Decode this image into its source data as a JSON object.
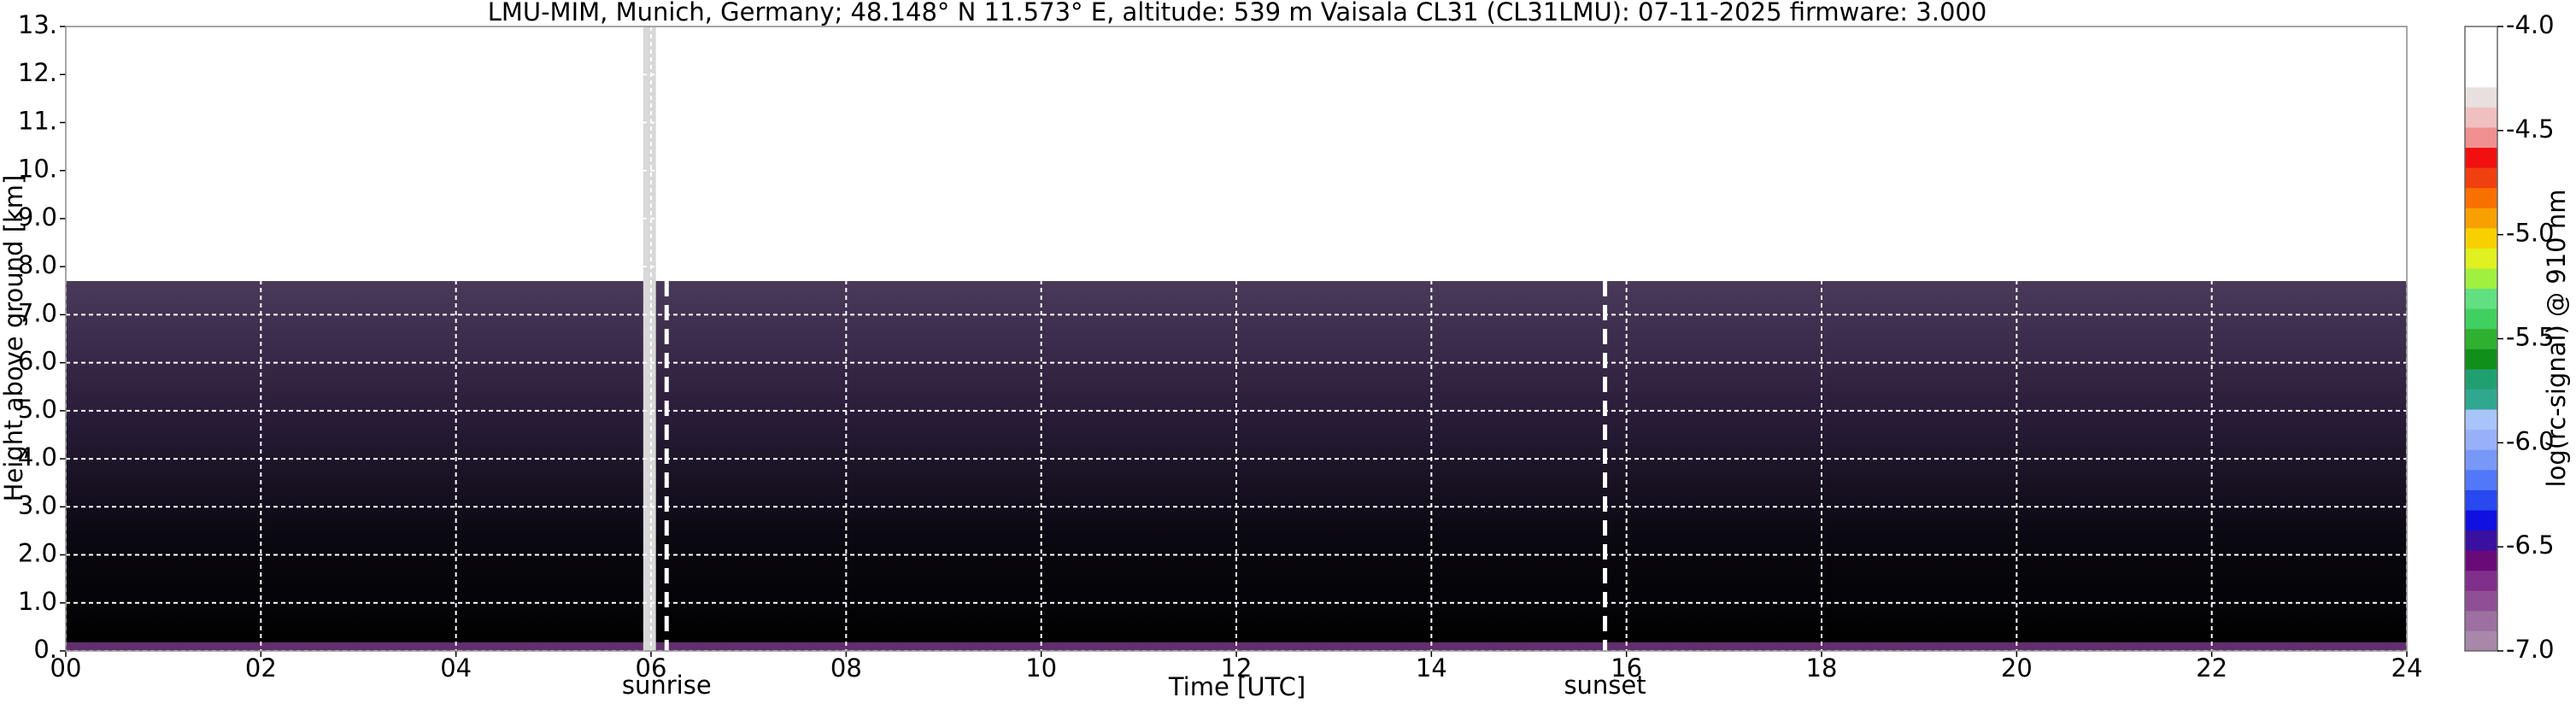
{
  "chart_data": {
    "type": "heatmap",
    "title": "LMU-MIM, Munich, Germany; 48.148° N 11.573° E, altitude: 539 m    Vaisala CL31 (CL31LMU): 07-11-2025    firmware: 3.000",
    "xlabel": "Time [UTC]",
    "ylabel": "Height above ground [km]",
    "xlim": [
      0,
      24
    ],
    "xticks": [
      {
        "value": 0,
        "label": "00"
      },
      {
        "value": 2,
        "label": "02"
      },
      {
        "value": 4,
        "label": "04"
      },
      {
        "value": 6,
        "label": "06"
      },
      {
        "value": 8,
        "label": "08"
      },
      10,
      12,
      14,
      16,
      18,
      20,
      22,
      24
    ],
    "ylim": [
      0,
      13
    ],
    "yticks": [
      {
        "value": 0,
        "label": "0."
      },
      {
        "value": 1,
        "label": "1.0"
      },
      {
        "value": 2,
        "label": "2.0"
      },
      {
        "value": 3,
        "label": "3.0"
      },
      {
        "value": 4,
        "label": "4.0"
      },
      {
        "value": 5,
        "label": "5.0"
      },
      {
        "value": 6,
        "label": "6.0"
      },
      {
        "value": 7,
        "label": "7.0"
      },
      {
        "value": 8,
        "label": "8.0"
      },
      {
        "value": 9,
        "label": "9.0"
      },
      {
        "value": 10,
        "label": "10."
      },
      {
        "value": 11,
        "label": "11."
      },
      {
        "value": 12,
        "label": "12."
      },
      {
        "value": 13,
        "label": "13."
      }
    ],
    "grid": true,
    "signal_top": 7.7,
    "data_gap": [
      5.92,
      6.05
    ],
    "annotations": [
      {
        "label": "sunrise",
        "x": 6.16
      },
      {
        "label": "sunset",
        "x": 15.78
      }
    ],
    "colorbar": {
      "label": "log(rc-signal) @ 910 nm",
      "lim": [
        -7,
        -4
      ],
      "ticks": [
        {
          "value": -7,
          "label": "-7.0"
        },
        -6.5,
        {
          "value": -6,
          "label": "-6.0"
        },
        -5.5,
        {
          "value": -5,
          "label": "-5.0"
        },
        -4.5,
        {
          "value": -4,
          "label": "-4.0"
        }
      ],
      "colors": [
        "#a888a8",
        "#9c70a0",
        "#904f94",
        "#80308a",
        "#6a0a78",
        "#3a10a0",
        "#1010e0",
        "#2848f0",
        "#5078f8",
        "#7898f8",
        "#98b0f8",
        "#a8c4f8",
        "#30a890",
        "#20a070",
        "#10901a",
        "#30b030",
        "#40d060",
        "#60e080",
        "#a0f040",
        "#e0f020",
        "#f8d000",
        "#f8a000",
        "#f87000",
        "#f04010",
        "#f01010",
        "#f09090",
        "#f0c0c0",
        "#e8e0e0",
        "#ffffff",
        "#ffffff",
        "#ffffff"
      ]
    }
  }
}
